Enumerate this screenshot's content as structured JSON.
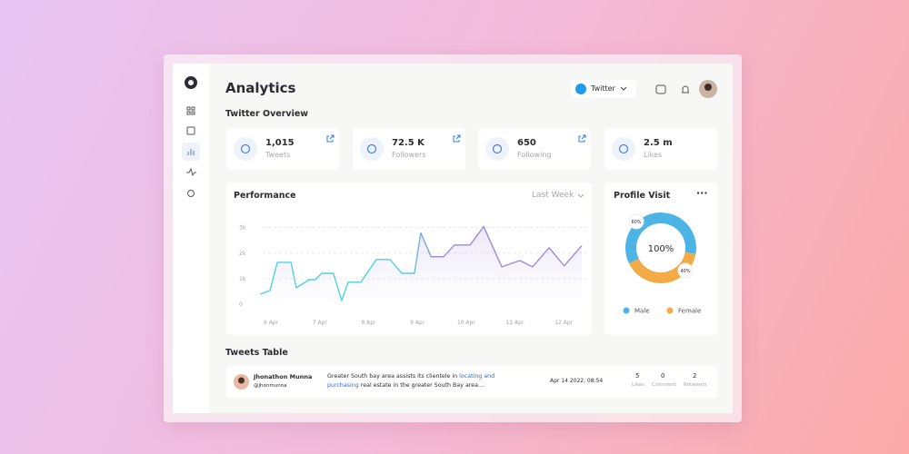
{
  "header": {
    "title": "Analytics",
    "platform": "Twitter"
  },
  "overview": {
    "title": "Twitter Overview",
    "stats": [
      {
        "value": "1,015",
        "label": "Tweets"
      },
      {
        "value": "72.5 K",
        "label": "Followers"
      },
      {
        "value": "650",
        "label": "Following"
      },
      {
        "value": "2.5 m",
        "label": "Likes"
      }
    ]
  },
  "chart_data": [
    {
      "type": "line",
      "title": "Performance",
      "filter": "Last Week",
      "x": [
        5.78,
        5.98,
        6.13,
        6.41,
        6.52,
        6.78,
        6.91,
        7.04,
        7.28,
        7.45,
        7.58,
        7.84,
        8.16,
        8.44,
        8.68,
        8.94,
        9.07,
        9.28,
        9.54,
        9.76,
        10.08,
        10.36,
        10.73,
        11.1,
        11.36,
        11.7,
        12.01,
        12.37
      ],
      "values": [
        0.39,
        0.54,
        1.64,
        1.64,
        0.64,
        0.96,
        0.96,
        1.21,
        1.21,
        0.14,
        0.86,
        0.86,
        1.75,
        1.75,
        1.21,
        1.21,
        2.79,
        1.86,
        1.86,
        2.32,
        2.32,
        3.04,
        1.46,
        1.71,
        1.46,
        2.21,
        1.5,
        2.29
      ],
      "colors": [
        "#4fd3e2",
        "#9d88e0"
      ],
      "xlim": [
        5.7,
        12.5
      ],
      "xticks": [
        {
          "value": 6,
          "label": "6 Apr"
        },
        {
          "value": 7,
          "label": "7 Apr"
        },
        {
          "value": 8,
          "label": "8 Apr"
        },
        {
          "value": 9,
          "label": "9 Apr"
        },
        {
          "value": 10,
          "label": "10 Apr"
        },
        {
          "value": 11,
          "label": "11 Apr"
        },
        {
          "value": 12,
          "label": "12 Apr"
        }
      ],
      "ylim": [
        0,
        3.2
      ],
      "yticks": [
        0,
        {
          "value": 1,
          "label": "1k"
        },
        {
          "value": 2,
          "label": "2k"
        },
        {
          "value": 3,
          "label": "3k"
        }
      ],
      "grid": true
    },
    {
      "type": "pie",
      "title": "Profile Visit",
      "center_label": "100%",
      "categories": [
        "Male",
        "Female"
      ],
      "values": [
        60,
        40
      ],
      "value_labels": [
        "60%",
        "40%"
      ],
      "colors": [
        "#4db5e6",
        "#f3ab48"
      ]
    }
  ],
  "tweets_table": {
    "title": "Tweets Table",
    "rows": [
      {
        "name": "Jhonathon Munna",
        "handle": "@jhonmunna",
        "text_before": "Greater South bay area assists its clientele in ",
        "link": "locating and purchasing",
        "text_after": " real estate in the greater South Bay area....",
        "date": "Apr 14 2022, 08:54",
        "likes": "5",
        "likes_label": "Likes",
        "comments": "0",
        "comments_label": "Comment",
        "retweets": "2",
        "retweets_label": "Retweets"
      }
    ]
  }
}
